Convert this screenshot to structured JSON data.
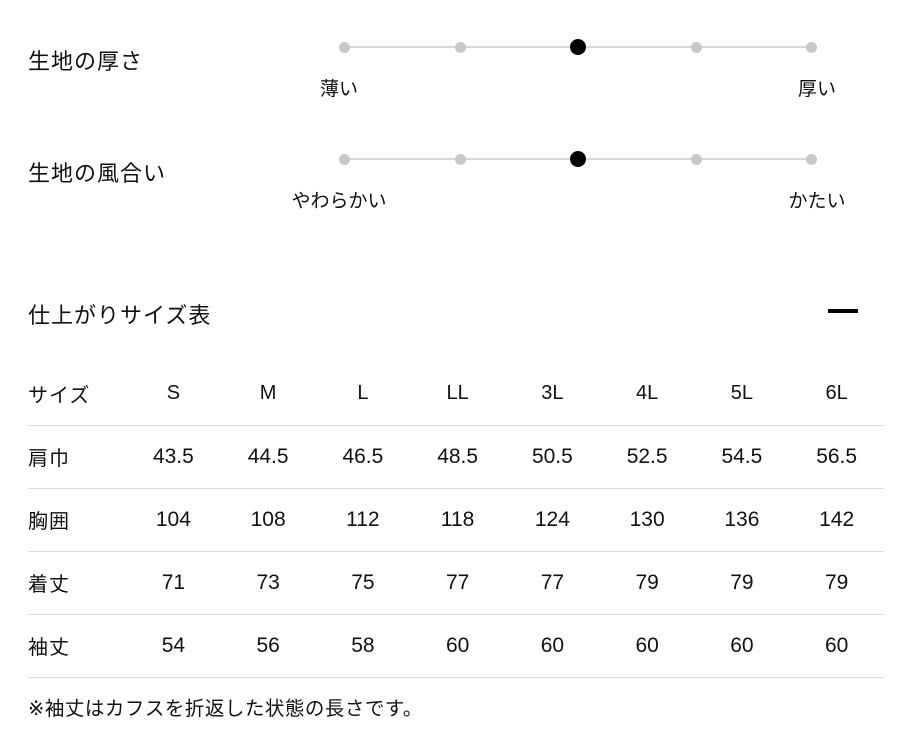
{
  "fabric_scales": {
    "items": [
      {
        "label": "生地の厚さ",
        "left_label": "薄い",
        "right_label": "厚い",
        "steps": 5,
        "value": 3
      },
      {
        "label": "生地の風合い",
        "left_label": "やわらかい",
        "right_label": "かたい",
        "steps": 5,
        "value": 3
      }
    ]
  },
  "size_section": {
    "title": "仕上がりサイズ表",
    "collapse_icon": "minus-icon",
    "table": {
      "columns": [
        "サイズ",
        "S",
        "M",
        "L",
        "LL",
        "3L",
        "4L",
        "5L",
        "6L"
      ],
      "rows": [
        {
          "label": "肩巾",
          "values": [
            "43.5",
            "44.5",
            "46.5",
            "48.5",
            "50.5",
            "52.5",
            "54.5",
            "56.5"
          ]
        },
        {
          "label": "胸囲",
          "values": [
            "104",
            "108",
            "112",
            "118",
            "124",
            "130",
            "136",
            "142"
          ]
        },
        {
          "label": "着丈",
          "values": [
            "71",
            "73",
            "75",
            "77",
            "77",
            "79",
            "79",
            "79"
          ]
        },
        {
          "label": "袖丈",
          "values": [
            "54",
            "56",
            "58",
            "60",
            "60",
            "60",
            "60",
            "60"
          ]
        }
      ]
    },
    "footnote": "※袖丈はカフスを折返した状態の長さです。"
  },
  "colors": {
    "text": "#111111",
    "accent_dot": "#000000",
    "inactive_dot": "#c8c8c8",
    "track": "#d9d9d9",
    "divider": "#dbdbdb",
    "bg": "#ffffff"
  }
}
